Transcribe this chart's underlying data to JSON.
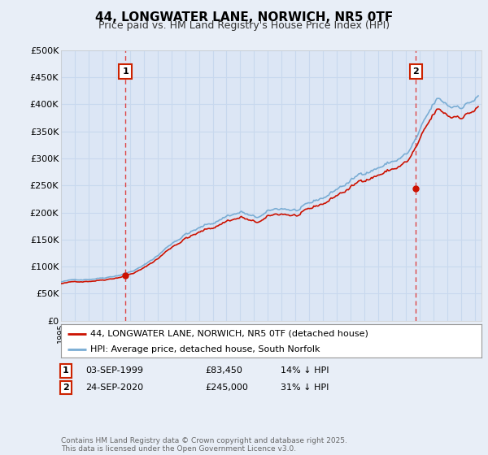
{
  "title": "44, LONGWATER LANE, NORWICH, NR5 0TF",
  "subtitle": "Price paid vs. HM Land Registry's House Price Index (HPI)",
  "background_color": "#e8eef7",
  "plot_bg_color": "#dce6f5",
  "ylim": [
    0,
    500000
  ],
  "yticks": [
    0,
    50000,
    100000,
    150000,
    200000,
    250000,
    300000,
    350000,
    400000,
    450000,
    500000
  ],
  "ytick_labels": [
    "£0",
    "£50K",
    "£100K",
    "£150K",
    "£200K",
    "£250K",
    "£300K",
    "£350K",
    "£400K",
    "£450K",
    "£500K"
  ],
  "sale1_date": 1999.67,
  "sale1_price": 83450,
  "sale1_label": "1",
  "sale2_date": 2020.73,
  "sale2_price": 245000,
  "sale2_label": "2",
  "legend_line1": "44, LONGWATER LANE, NORWICH, NR5 0TF (detached house)",
  "legend_line2": "HPI: Average price, detached house, South Norfolk",
  "table_row1": [
    "1",
    "03-SEP-1999",
    "£83,450",
    "14% ↓ HPI"
  ],
  "table_row2": [
    "2",
    "24-SEP-2020",
    "£245,000",
    "31% ↓ HPI"
  ],
  "footer": "Contains HM Land Registry data © Crown copyright and database right 2025.\nThis data is licensed under the Open Government Licence v3.0.",
  "hpi_color": "#7aadd4",
  "price_color": "#cc1100",
  "vline_color": "#dd4444",
  "grid_color": "#c8d8ee",
  "box_edge_color": "#cc2200"
}
